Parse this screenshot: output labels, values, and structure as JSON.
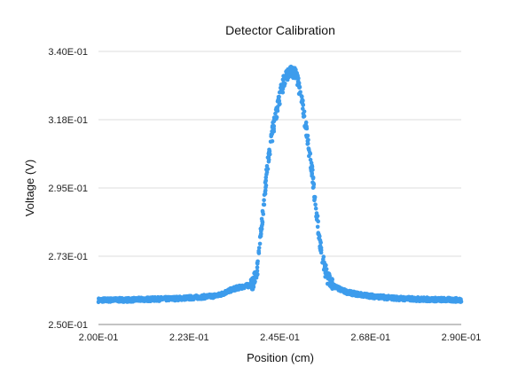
{
  "chart_data": {
    "type": "scatter",
    "title": "Detector Calibration",
    "xlabel": "Position (cm)",
    "ylabel": "Voltage (V)",
    "xlim": [
      0.2,
      0.29
    ],
    "ylim": [
      0.25,
      0.34
    ],
    "x_ticks": [
      "2.00E-01",
      "2.23E-01",
      "2.45E-01",
      "2.68E-01",
      "2.90E-01"
    ],
    "x_tick_values": [
      0.2,
      0.2225,
      0.245,
      0.2675,
      0.29
    ],
    "y_ticks": [
      "2.50E-01",
      "2.73E-01",
      "2.95E-01",
      "3.18E-01",
      "3.40E-01"
    ],
    "y_tick_values": [
      0.25,
      0.2725,
      0.295,
      0.3175,
      0.34
    ],
    "grid": true,
    "legend": "none",
    "marker_color": "#3d9cec",
    "series": [
      {
        "x": [
          0.2,
          0.204,
          0.208,
          0.212,
          0.216,
          0.22,
          0.224,
          0.228,
          0.23,
          0.232,
          0.234,
          0.236,
          0.237,
          0.238,
          0.2385,
          0.239,
          0.2395,
          0.24,
          0.2405,
          0.241,
          0.2415,
          0.242,
          0.2425,
          0.243,
          0.2435,
          0.244,
          0.2445,
          0.245,
          0.2455,
          0.246,
          0.2465,
          0.247,
          0.2475,
          0.248,
          0.2485,
          0.249,
          0.2495,
          0.25,
          0.2505,
          0.251,
          0.2515,
          0.252,
          0.2525,
          0.253,
          0.2535,
          0.254,
          0.2545,
          0.255,
          0.2555,
          0.256,
          0.257,
          0.258,
          0.26,
          0.262,
          0.265,
          0.268,
          0.272,
          0.276,
          0.28,
          0.284,
          0.288,
          0.29
        ],
        "y": [
          0.258,
          0.2581,
          0.2581,
          0.2583,
          0.2584,
          0.2586,
          0.2589,
          0.2593,
          0.2597,
          0.2609,
          0.2619,
          0.2625,
          0.2628,
          0.2631,
          0.264,
          0.266,
          0.269,
          0.276,
          0.283,
          0.29,
          0.297,
          0.303,
          0.308,
          0.312,
          0.316,
          0.319,
          0.322,
          0.325,
          0.328,
          0.33,
          0.332,
          0.333,
          0.3335,
          0.3334,
          0.333,
          0.332,
          0.33,
          0.327,
          0.323,
          0.319,
          0.315,
          0.31,
          0.305,
          0.3,
          0.294,
          0.288,
          0.282,
          0.276,
          0.272,
          0.269,
          0.265,
          0.263,
          0.2615,
          0.2605,
          0.2598,
          0.2593,
          0.2588,
          0.2585,
          0.2583,
          0.2582,
          0.2581,
          0.258
        ]
      }
    ]
  }
}
